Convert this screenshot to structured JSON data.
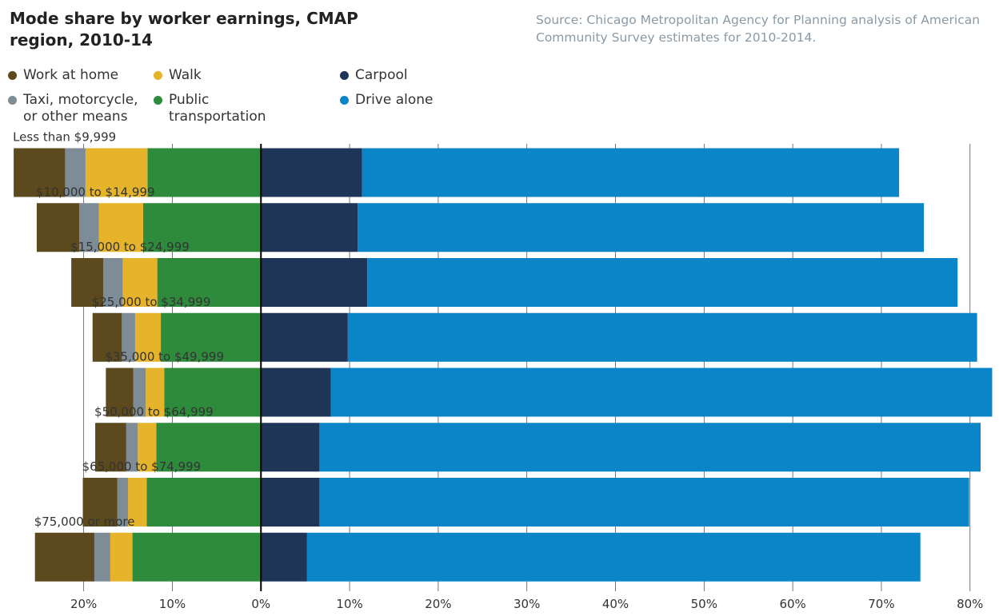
{
  "chart_data": {
    "type": "diverging-bar",
    "title": "Mode share by worker earnings, CMAP region, 2010-14",
    "source": "Source: Chicago Metropolitan Agency for Planning analysis of American Community Survey estimates for 2010-2014.",
    "categories": [
      "Less than $9,999",
      "$10,000 to $14,999",
      "$15,000 to $24,999",
      "$25,000 to $34,999",
      "$35,000 to $49,999",
      "$50,000 to $64,999",
      "$65,000 to $74,999",
      "$75,000 or more"
    ],
    "series": [
      {
        "name": "Public transportation",
        "color": "#2e8b3c",
        "side": "left",
        "values": [
          12.8,
          13.3,
          11.7,
          11.3,
          10.9,
          11.8,
          12.9,
          14.5
        ]
      },
      {
        "name": "Walk",
        "color": "#e6b42a",
        "side": "left",
        "values": [
          7.0,
          5.0,
          3.9,
          2.9,
          2.1,
          2.1,
          2.1,
          2.5
        ]
      },
      {
        "name": "Taxi, motorcycle, or other means",
        "color": "#7d8c96",
        "side": "left",
        "values": [
          2.3,
          2.2,
          2.2,
          1.5,
          1.4,
          1.3,
          1.2,
          1.8
        ]
      },
      {
        "name": "Work at home",
        "color": "#5c4a1e",
        "side": "left",
        "values": [
          5.8,
          4.8,
          3.6,
          3.3,
          3.1,
          3.5,
          3.9,
          6.7
        ]
      },
      {
        "name": "Carpool",
        "color": "#1f3558",
        "side": "right",
        "values": [
          11.4,
          10.9,
          12.0,
          9.8,
          7.9,
          6.6,
          6.6,
          5.2
        ]
      },
      {
        "name": "Drive alone",
        "color": "#0a86c8",
        "side": "right",
        "values": [
          60.6,
          63.9,
          66.6,
          71.0,
          74.6,
          74.6,
          73.3,
          69.2
        ]
      }
    ],
    "xlim": [
      -28,
      83
    ],
    "xticks": [
      {
        "value": -20,
        "label": "20%"
      },
      {
        "value": -10,
        "label": "10%"
      },
      {
        "value": 0,
        "label": "0%"
      },
      {
        "value": 10,
        "label": "10%"
      },
      {
        "value": 20,
        "label": "20%"
      },
      {
        "value": 30,
        "label": "30%"
      },
      {
        "value": 40,
        "label": "40%"
      },
      {
        "value": 50,
        "label": "50%"
      },
      {
        "value": 60,
        "label": "60%"
      },
      {
        "value": 70,
        "label": "70%"
      },
      {
        "value": 80,
        "label": "80%"
      }
    ],
    "grid": true
  }
}
